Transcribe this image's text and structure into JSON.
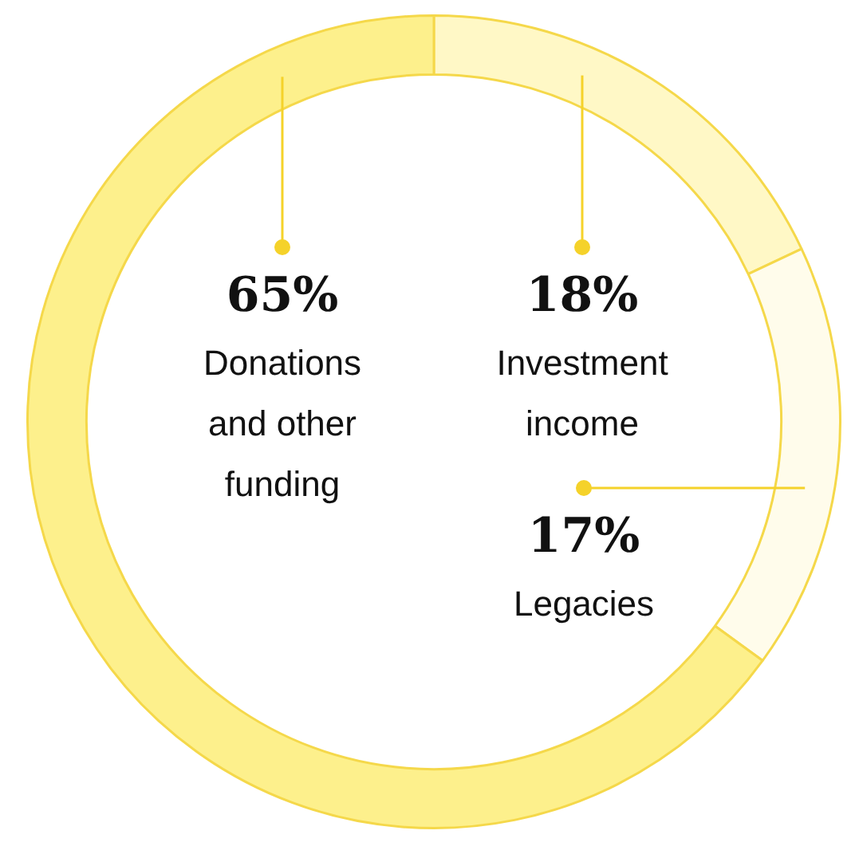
{
  "chart_data": {
    "type": "donut",
    "categories": [
      "Investment income",
      "Legacies",
      "Donations and other funding"
    ],
    "values": [
      18,
      17,
      65
    ],
    "value_labels": [
      "18%",
      "17%",
      "65%"
    ],
    "colors": [
      "#fff8c6",
      "#fffceb",
      "#fdf08c"
    ]
  }
}
